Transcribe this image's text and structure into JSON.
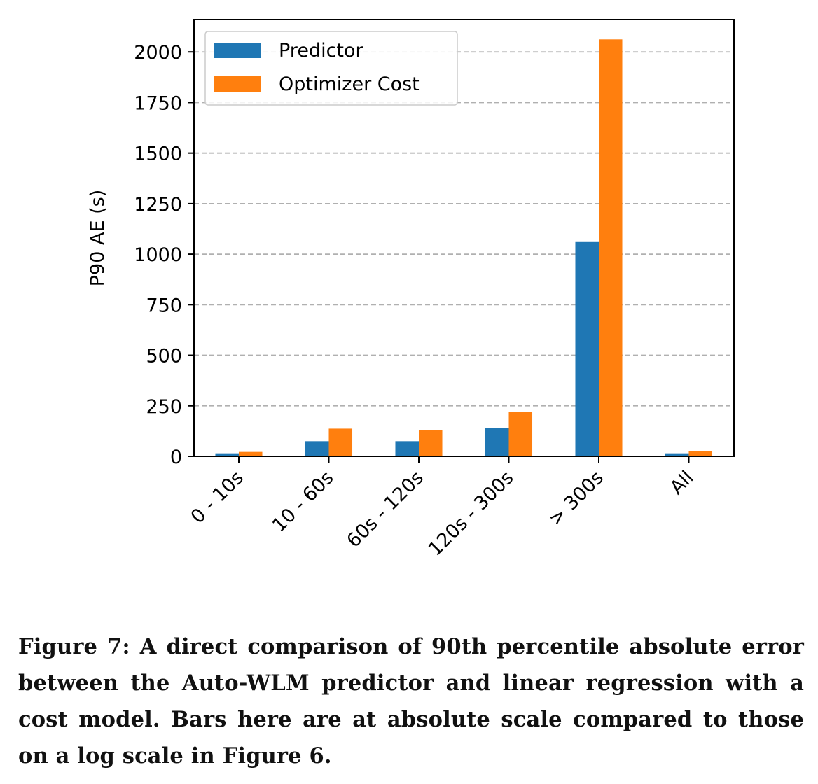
{
  "chart_data": {
    "type": "bar",
    "title": "",
    "xlabel": "",
    "ylabel": "P90 AE (s)",
    "categories": [
      "0 - 10s",
      "10 - 60s",
      "60s - 120s",
      "120s - 300s",
      "> 300s",
      "All"
    ],
    "series": [
      {
        "name": "Predictor",
        "color": "#1f77b4",
        "values": [
          15,
          75,
          75,
          140,
          1060,
          15
        ]
      },
      {
        "name": "Optimizer Cost",
        "color": "#ff7f0e",
        "values": [
          22,
          137,
          130,
          220,
          2062,
          25
        ]
      }
    ],
    "ylim": [
      0,
      2160
    ],
    "yticks": [
      0,
      250,
      500,
      750,
      1000,
      1250,
      1500,
      1750,
      2000
    ],
    "grid": "y-dashed",
    "legend": "top-left"
  },
  "caption": {
    "text": "Figure 7: A direct comparison of 90th percentile absolute error between the Auto-WLM predictor and linear regression with a cost model. Bars here are at absolute scale compared to those on a log scale in Figure 6."
  }
}
